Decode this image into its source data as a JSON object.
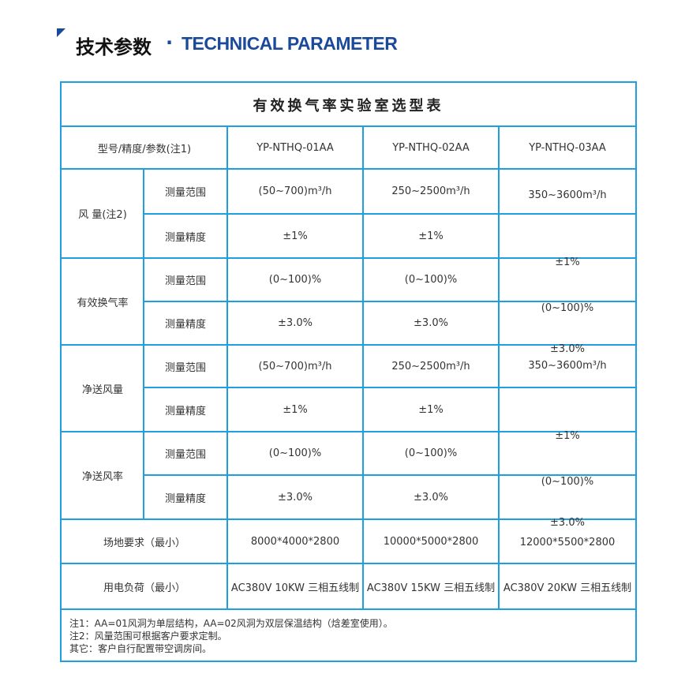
{
  "header": {
    "title_cn": "技术参数",
    "separator": "·",
    "title_en": "TECHNICAL PARAMETER"
  },
  "table": {
    "title": "有效换气率实验室选型表",
    "col_header": "型号/精度/参数(注1)",
    "models": [
      "YP-NTHQ-01AA",
      "YP-NTHQ-02AA",
      "YP-NTHQ-03AA"
    ],
    "groups": [
      {
        "label": "风 量(注2)",
        "rows": [
          {
            "label": "测量范围",
            "values": [
              "(50~700)m³/h",
              "250~2500m³/h",
              "350~3600m³/h"
            ]
          },
          {
            "label": "测量精度",
            "values": [
              "±1%",
              "±1%",
              "±1%"
            ]
          }
        ]
      },
      {
        "label": "有效换气率",
        "rows": [
          {
            "label": "测量范围",
            "values": [
              "(0~100)%",
              "(0~100)%",
              "(0~100)%"
            ]
          },
          {
            "label": "测量精度",
            "values": [
              "±3.0%",
              "±3.0%",
              "±3.0%"
            ]
          }
        ]
      },
      {
        "label": "净送风量",
        "rows": [
          {
            "label": "测量范围",
            "values": [
              "(50~700)m³/h",
              "250~2500m³/h",
              "350~3600m³/h"
            ]
          },
          {
            "label": "测量精度",
            "values": [
              "±1%",
              "±1%",
              "±1%"
            ]
          }
        ]
      },
      {
        "label": "净送风率",
        "rows": [
          {
            "label": "测量范围",
            "values": [
              "(0~100)%",
              "(0~100)%",
              "(0~100)%"
            ]
          },
          {
            "label": "测量精度",
            "values": [
              "±3.0%",
              "±3.0%",
              "±3.0%"
            ]
          }
        ]
      }
    ],
    "site": {
      "label": "场地要求（最小）",
      "values": [
        "8000*4000*2800",
        "10000*5000*2800",
        "12000*5500*2800"
      ]
    },
    "power": {
      "label": "用电负荷（最小）",
      "values": [
        "AC380V  10KW 三相五线制",
        "AC380V 15KW 三相五线制",
        "AC380V 20KW 三相五线制"
      ]
    },
    "notes": [
      "注1：AA=01风洞为单层结构，AA=02风洞为双层保温结构（焓差室使用）。",
      "注2：风量范围可根据客户要求定制。",
      "其它：客户自行配置带空调房间。"
    ]
  },
  "colors": {
    "brand": "#1b4a9b",
    "line": "#1ea0e0"
  }
}
